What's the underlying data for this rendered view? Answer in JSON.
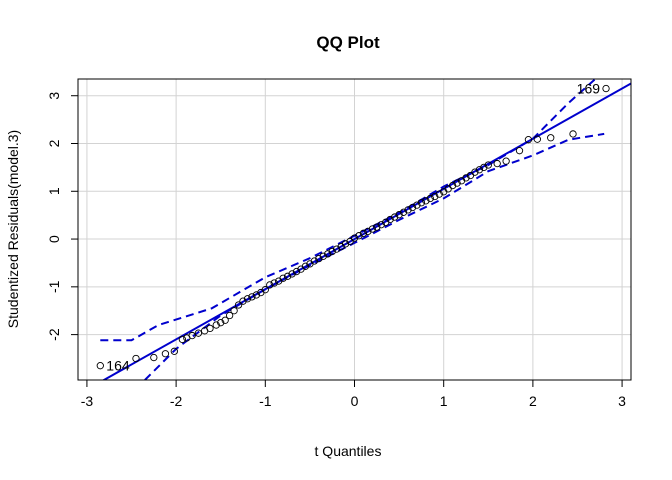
{
  "chart_data": {
    "type": "scatter",
    "title": "QQ Plot",
    "xlabel": "t Quantiles",
    "ylabel": "Studentized Residuals(model.3)",
    "xlim": [
      -3.1,
      3.1
    ],
    "ylim": [
      -2.95,
      3.35
    ],
    "x_ticks": [
      -3,
      -2,
      -1,
      0,
      1,
      2,
      3
    ],
    "y_ticks": [
      -2,
      -1,
      0,
      1,
      2,
      3
    ],
    "grid": true,
    "colors": {
      "reference": "#0000cd",
      "points": "#000000"
    },
    "reference_line": {
      "intercept": 0.0,
      "slope": 1.05
    },
    "envelope_upper": [
      [
        -2.85,
        -2.12
      ],
      [
        -2.5,
        -2.12
      ],
      [
        -2.2,
        -1.8
      ],
      [
        -1.6,
        -1.45
      ],
      [
        -1.0,
        -0.8
      ],
      [
        -0.5,
        -0.4
      ],
      [
        0.0,
        0.07
      ],
      [
        0.5,
        0.55
      ],
      [
        1.0,
        1.1
      ],
      [
        1.5,
        1.55
      ],
      [
        2.0,
        2.1
      ],
      [
        2.4,
        2.85
      ],
      [
        2.7,
        3.35
      ]
    ],
    "envelope_lower": [
      [
        -2.35,
        -2.95
      ],
      [
        -2.0,
        -2.3
      ],
      [
        -1.5,
        -1.6
      ],
      [
        -1.0,
        -1.05
      ],
      [
        -0.5,
        -0.55
      ],
      [
        0.0,
        -0.08
      ],
      [
        0.5,
        0.4
      ],
      [
        1.0,
        0.85
      ],
      [
        1.5,
        1.42
      ],
      [
        2.0,
        1.75
      ],
      [
        2.4,
        2.08
      ],
      [
        2.8,
        2.2
      ]
    ],
    "points": [
      [
        -2.85,
        -2.65
      ],
      [
        -2.45,
        -2.5
      ],
      [
        -2.25,
        -2.48
      ],
      [
        -2.12,
        -2.4
      ],
      [
        -2.02,
        -2.35
      ],
      [
        -1.93,
        -2.1
      ],
      [
        -1.88,
        -2.07
      ],
      [
        -1.82,
        -2.02
      ],
      [
        -1.75,
        -1.97
      ],
      [
        -1.68,
        -1.92
      ],
      [
        -1.62,
        -1.87
      ],
      [
        -1.55,
        -1.8
      ],
      [
        -1.5,
        -1.75
      ],
      [
        -1.45,
        -1.7
      ],
      [
        -1.4,
        -1.6
      ],
      [
        -1.35,
        -1.5
      ],
      [
        -1.3,
        -1.38
      ],
      [
        -1.25,
        -1.3
      ],
      [
        -1.2,
        -1.25
      ],
      [
        -1.15,
        -1.21
      ],
      [
        -1.1,
        -1.17
      ],
      [
        -1.05,
        -1.12
      ],
      [
        -1.0,
        -1.06
      ],
      [
        -0.95,
        -0.96
      ],
      [
        -0.9,
        -0.92
      ],
      [
        -0.85,
        -0.88
      ],
      [
        -0.8,
        -0.82
      ],
      [
        -0.75,
        -0.78
      ],
      [
        -0.7,
        -0.73
      ],
      [
        -0.65,
        -0.68
      ],
      [
        -0.6,
        -0.63
      ],
      [
        -0.55,
        -0.57
      ],
      [
        -0.5,
        -0.52
      ],
      [
        -0.45,
        -0.46
      ],
      [
        -0.4,
        -0.41
      ],
      [
        -0.35,
        -0.36
      ],
      [
        -0.3,
        -0.31
      ],
      [
        -0.25,
        -0.26
      ],
      [
        -0.2,
        -0.21
      ],
      [
        -0.15,
        -0.16
      ],
      [
        -0.1,
        -0.1
      ],
      [
        -0.05,
        -0.05
      ],
      [
        0.0,
        0.02
      ],
      [
        0.05,
        0.07
      ],
      [
        0.1,
        0.12
      ],
      [
        0.15,
        0.16
      ],
      [
        0.2,
        0.21
      ],
      [
        0.25,
        0.25
      ],
      [
        0.3,
        0.3
      ],
      [
        0.35,
        0.35
      ],
      [
        0.4,
        0.41
      ],
      [
        0.45,
        0.46
      ],
      [
        0.5,
        0.51
      ],
      [
        0.55,
        0.56
      ],
      [
        0.6,
        0.61
      ],
      [
        0.65,
        0.66
      ],
      [
        0.7,
        0.71
      ],
      [
        0.75,
        0.76
      ],
      [
        0.8,
        0.8
      ],
      [
        0.85,
        0.85
      ],
      [
        0.9,
        0.89
      ],
      [
        0.95,
        0.94
      ],
      [
        1.0,
        0.99
      ],
      [
        1.05,
        1.05
      ],
      [
        1.1,
        1.12
      ],
      [
        1.15,
        1.17
      ],
      [
        1.2,
        1.22
      ],
      [
        1.25,
        1.28
      ],
      [
        1.3,
        1.33
      ],
      [
        1.35,
        1.4
      ],
      [
        1.4,
        1.45
      ],
      [
        1.45,
        1.5
      ],
      [
        1.5,
        1.55
      ],
      [
        1.6,
        1.58
      ],
      [
        1.7,
        1.63
      ],
      [
        1.85,
        1.85
      ],
      [
        1.95,
        2.08
      ],
      [
        2.05,
        2.09
      ],
      [
        2.2,
        2.12
      ],
      [
        2.45,
        2.2
      ],
      [
        2.82,
        3.15
      ]
    ],
    "point_labels": [
      {
        "text": "169",
        "x": 2.82,
        "y": 3.15
      },
      {
        "text": "164",
        "x": -2.85,
        "y": -2.65
      }
    ]
  }
}
